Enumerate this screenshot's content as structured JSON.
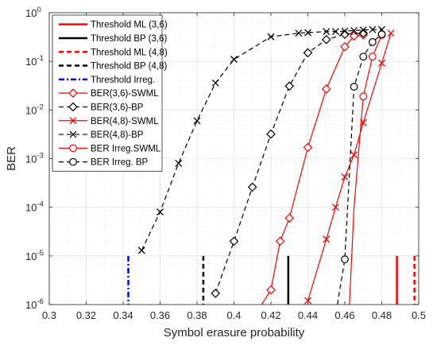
{
  "chart_data": {
    "type": "line",
    "xlabel": "Symbol erasure probability",
    "ylabel": "BER",
    "xlim": [
      0.3,
      0.5
    ],
    "ylim": [
      1e-06,
      1
    ],
    "yscale": "log",
    "grid": true,
    "legend_position": "top-left",
    "x_ticks": [
      "0.3",
      "0.32",
      "0.34",
      "0.36",
      "0.38",
      "0.4",
      "0.42",
      "0.44",
      "0.46",
      "0.48",
      "0.5"
    ],
    "y_ticks": [
      {
        "base": "10",
        "exp": "-6"
      },
      {
        "base": "10",
        "exp": "-5"
      },
      {
        "base": "10",
        "exp": "-4"
      },
      {
        "base": "10",
        "exp": "-3"
      },
      {
        "base": "10",
        "exp": "-2"
      },
      {
        "base": "10",
        "exp": "-1"
      },
      {
        "base": "10",
        "exp": "0"
      }
    ],
    "thresholds": [
      {
        "name": "Threshold ML (3,6)",
        "x": 0.4882,
        "color": "#ff0000",
        "dash": "solid"
      },
      {
        "name": "Threshold BP (3,6)",
        "x": 0.4294,
        "color": "#000000",
        "dash": "solid"
      },
      {
        "name": "Threshold ML (4,8)",
        "x": 0.4977,
        "color": "#ff0000",
        "dash": "dashed"
      },
      {
        "name": "Threshold BP (4,8)",
        "x": 0.3834,
        "color": "#000000",
        "dash": "dashed"
      },
      {
        "name": "Threshold Irreg.",
        "x": 0.3428,
        "color": "#0000ff",
        "dash": "dashdot"
      }
    ],
    "series": [
      {
        "name": "BER(3,6)-SWML",
        "color": "#ff0000",
        "dash": "solid",
        "marker": "diamond",
        "x": [
          0.415,
          0.42,
          0.425,
          0.43,
          0.44,
          0.45,
          0.46,
          0.465,
          0.47
        ],
        "y": [
          1e-06,
          2e-06,
          2e-05,
          6e-05,
          0.0017,
          0.027,
          0.2,
          0.33,
          0.35
        ],
        "markers_from": 1
      },
      {
        "name": "BER(3,6)-BP",
        "color": "#000000",
        "dash": "dashed",
        "marker": "diamond",
        "x": [
          0.39,
          0.4,
          0.41,
          0.42,
          0.43,
          0.44,
          0.45,
          0.46,
          0.47
        ],
        "y": [
          1.7e-06,
          2e-05,
          0.00026,
          0.0032,
          0.031,
          0.15,
          0.28,
          0.36,
          0.38
        ]
      },
      {
        "name": "BER(4,8)-SWML",
        "color": "#ff0000",
        "dash": "solid",
        "marker": "x",
        "x": [
          0.44,
          0.45,
          0.455,
          0.46,
          0.465,
          0.47,
          0.48,
          0.485
        ],
        "y": [
          1.2e-06,
          2.2e-05,
          0.0001,
          0.00042,
          0.0012,
          0.0055,
          0.092,
          0.38
        ]
      },
      {
        "name": "BER(4,8)-BP",
        "color": "#000000",
        "dash": "dashed",
        "marker": "x",
        "x": [
          0.35,
          0.36,
          0.37,
          0.38,
          0.39,
          0.4,
          0.42,
          0.435,
          0.44,
          0.45,
          0.455,
          0.46,
          0.465,
          0.47,
          0.475,
          0.48
        ],
        "y": [
          1.3e-05,
          8e-05,
          0.0008,
          0.006,
          0.036,
          0.11,
          0.32,
          0.38,
          0.39,
          0.41,
          0.41,
          0.42,
          0.43,
          0.44,
          0.45,
          0.45
        ]
      },
      {
        "name": "BER Irreg.SWML",
        "color": "#ff0000",
        "dash": "solid",
        "marker": "circle",
        "x": [
          0.4625,
          0.465,
          0.47,
          0.475,
          0.48
        ],
        "y": [
          1e-06,
          0.0001,
          0.019,
          0.125,
          0.35
        ],
        "markers_from": 2
      },
      {
        "name": "BER Irreg. BP",
        "color": "#000000",
        "dash": "dashed",
        "marker": "circle",
        "x": [
          0.456,
          0.46,
          0.465,
          0.47,
          0.475,
          0.48
        ],
        "y": [
          1e-06,
          8.5e-06,
          0.03,
          0.125,
          0.25,
          0.36
        ],
        "markers_from": 1
      }
    ]
  }
}
